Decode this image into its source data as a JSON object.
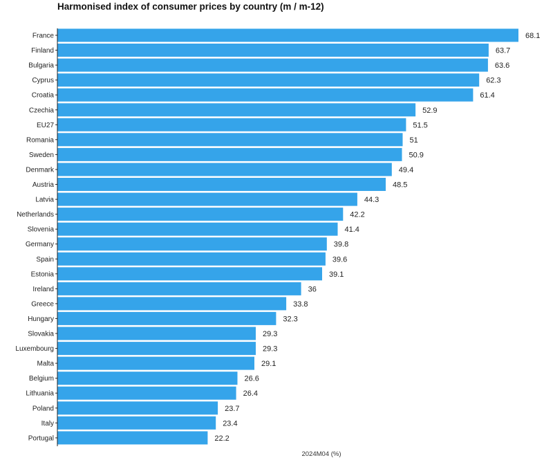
{
  "chart_data": {
    "type": "bar",
    "orientation": "horizontal",
    "title": "Harmonised index of consumer prices by country (m / m-12)",
    "xlabel": "2024M04 (%)",
    "ylabel": "",
    "xlim": [
      0,
      68.1
    ],
    "grid": false,
    "legend": "none",
    "bar_color": "#35a4ea",
    "categories": [
      "France",
      "Finland",
      "Bulgaria",
      "Cyprus",
      "Croatia",
      "Czechia",
      "EU27",
      "Romania",
      "Sweden",
      "Denmark",
      "Austria",
      "Latvia",
      "Netherlands",
      "Slovenia",
      "Germany",
      "Spain",
      "Estonia",
      "Ireland",
      "Greece",
      "Hungary",
      "Slovakia",
      "Luxembourg",
      "Malta",
      "Belgium",
      "Lithuania",
      "Poland",
      "Italy",
      "Portugal"
    ],
    "values": [
      68.1,
      63.7,
      63.6,
      62.3,
      61.4,
      52.9,
      51.5,
      51,
      50.9,
      49.4,
      48.5,
      44.3,
      42.2,
      41.4,
      39.8,
      39.6,
      39.1,
      36,
      33.8,
      32.3,
      29.3,
      29.3,
      29.1,
      26.6,
      26.4,
      23.7,
      23.4,
      22.2
    ]
  }
}
